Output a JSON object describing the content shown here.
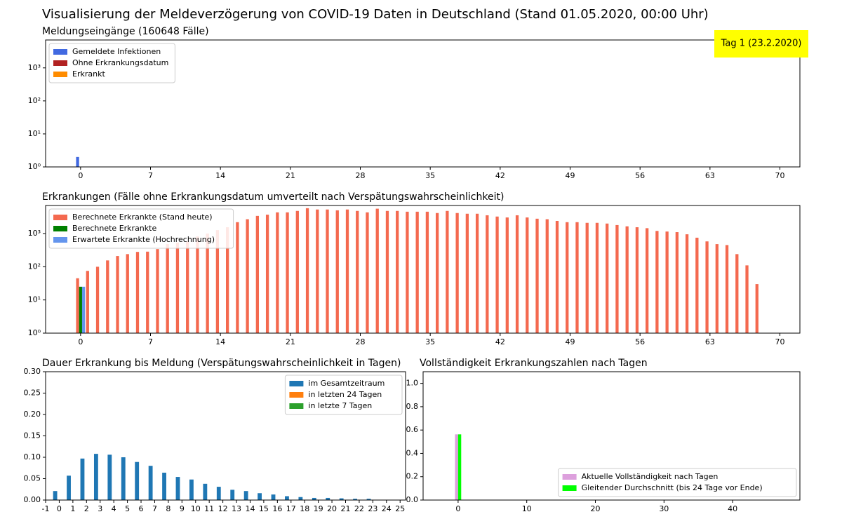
{
  "chart_data": [
    {
      "type": "bar",
      "suptitle": "Visualisierung der Meldeverzögerung von COVID-19 Daten in Deutschland (Stand 01.05.2020, 00:00 Uhr)",
      "title": "Meldungseingänge (160648 Fälle)",
      "log_y": true,
      "legend": "upper left",
      "xlim": [
        -3.5,
        72
      ],
      "xticks": [
        0,
        7,
        14,
        21,
        28,
        35,
        42,
        49,
        56,
        63,
        70
      ],
      "ylim": [
        1,
        7000
      ],
      "yticks": [
        {
          "value": 1,
          "label": "10⁰"
        },
        {
          "value": 10,
          "label": "10¹"
        },
        {
          "value": 100,
          "label": "10²"
        },
        {
          "value": 1000,
          "label": "10³"
        }
      ],
      "annotation": {
        "text": "Tag 1 (23.2.2020)",
        "color": "#ffff00"
      },
      "series": [
        {
          "name": "Gemeldete Infektionen",
          "color": "#4169e1",
          "x": [
            0
          ],
          "values": [
            2
          ]
        },
        {
          "name": "Ohne Erkrankungsdatum",
          "color": "#b22222",
          "x": [],
          "values": []
        },
        {
          "name": "Erkrankt",
          "color": "#ff8c00",
          "x": [],
          "values": []
        }
      ]
    },
    {
      "type": "bar",
      "title": "Erkrankungen (Fälle ohne Erkrankungsdatum umverteilt nach Verspätungswahrscheinlichkeit)",
      "log_y": true,
      "legend": "upper left",
      "xlim": [
        -3.5,
        72
      ],
      "xticks": [
        0,
        7,
        14,
        21,
        28,
        35,
        42,
        49,
        56,
        63,
        70
      ],
      "ylim": [
        1,
        7000
      ],
      "yticks": [
        {
          "value": 1,
          "label": "10⁰"
        },
        {
          "value": 10,
          "label": "10¹"
        },
        {
          "value": 100,
          "label": "10²"
        },
        {
          "value": 1000,
          "label": "10³"
        }
      ],
      "series": [
        {
          "name": "Berechnete Erkrankte (Stand heute)",
          "color": "#f4694f",
          "x": [
            0,
            1,
            2,
            3,
            4,
            5,
            6,
            7,
            8,
            9,
            10,
            11,
            12,
            13,
            14,
            15,
            16,
            17,
            18,
            19,
            20,
            21,
            22,
            23,
            24,
            25,
            26,
            27,
            28,
            29,
            30,
            31,
            32,
            33,
            34,
            35,
            36,
            37,
            38,
            39,
            40,
            41,
            42,
            43,
            44,
            45,
            46,
            47,
            48,
            49,
            50,
            51,
            52,
            53,
            54,
            55,
            56,
            57,
            58,
            59,
            60,
            61,
            62,
            63,
            64,
            65,
            66,
            67,
            68
          ],
          "values": [
            45,
            75,
            100,
            155,
            210,
            240,
            280,
            285,
            340,
            480,
            530,
            580,
            820,
            1000,
            1270,
            1550,
            2200,
            2700,
            3400,
            3700,
            4350,
            4350,
            4800,
            5800,
            5300,
            5300,
            5000,
            5300,
            4800,
            4350,
            5600,
            4800,
            4800,
            4550,
            4550,
            4550,
            4150,
            4800,
            4150,
            3950,
            3950,
            3550,
            3250,
            3050,
            3550,
            3050,
            2800,
            2700,
            2400,
            2200,
            2200,
            2100,
            2100,
            2000,
            1800,
            1650,
            1550,
            1450,
            1200,
            1150,
            1100,
            950,
            750,
            580,
            480,
            450,
            240,
            110,
            30
          ]
        },
        {
          "name": "Berechnete Erkrankte",
          "color": "#008000",
          "x": [
            0
          ],
          "values": [
            25
          ]
        },
        {
          "name": "Erwartete Erkrankte (Hochrechnung)",
          "color": "#6495ed",
          "x": [
            0
          ],
          "values": [
            25
          ]
        }
      ]
    },
    {
      "type": "bar",
      "title": "Dauer Erkrankung bis Meldung (Verspätungswahrscheinlichkeit in Tagen)",
      "log_y": false,
      "legend": "upper right",
      "xlim": [
        -1,
        25.4
      ],
      "xticks": [
        -1,
        0,
        1,
        2,
        3,
        4,
        5,
        6,
        7,
        8,
        9,
        10,
        11,
        12,
        13,
        14,
        15,
        16,
        17,
        18,
        19,
        20,
        21,
        22,
        23,
        24,
        25
      ],
      "ylim": [
        0,
        0.3
      ],
      "yticks": [
        {
          "value": 0,
          "label": "0.00"
        },
        {
          "value": 0.05,
          "label": "0.05"
        },
        {
          "value": 0.1,
          "label": "0.10"
        },
        {
          "value": 0.15,
          "label": "0.15"
        },
        {
          "value": 0.2,
          "label": "0.20"
        },
        {
          "value": 0.25,
          "label": "0.25"
        },
        {
          "value": 0.3,
          "label": "0.30"
        }
      ],
      "series": [
        {
          "name": "im Gesamtzeitraum",
          "color": "#1f77b4",
          "x": [
            0,
            1,
            2,
            3,
            4,
            5,
            6,
            7,
            8,
            9,
            10,
            11,
            12,
            13,
            14,
            15,
            16,
            17,
            18,
            19,
            20,
            21,
            22,
            23
          ],
          "values": [
            0.021,
            0.057,
            0.097,
            0.108,
            0.106,
            0.1,
            0.089,
            0.08,
            0.064,
            0.054,
            0.048,
            0.038,
            0.031,
            0.024,
            0.021,
            0.016,
            0.013,
            0.009,
            0.007,
            0.005,
            0.005,
            0.004,
            0.003,
            0.003
          ]
        },
        {
          "name": "in letzten 24 Tagen",
          "color": "#ff7f0e",
          "x": [],
          "values": []
        },
        {
          "name": "in letzte 7 Tagen",
          "color": "#2ca02c",
          "x": [],
          "values": []
        }
      ]
    },
    {
      "type": "bar",
      "title": "Vollständigkeit Erkrankungszahlen nach Tagen",
      "log_y": false,
      "legend": "lower right",
      "xlim": [
        -5.1,
        49.8
      ],
      "xticks": [
        0,
        10,
        20,
        30,
        40
      ],
      "ylim": [
        0,
        1.1
      ],
      "yticks": [
        {
          "value": 0,
          "label": "0.0"
        },
        {
          "value": 0.2,
          "label": "0.2"
        },
        {
          "value": 0.4,
          "label": "0.4"
        },
        {
          "value": 0.6,
          "label": "0.6"
        },
        {
          "value": 0.8,
          "label": "0.8"
        },
        {
          "value": 1,
          "label": "1.0"
        }
      ],
      "series": [
        {
          "name": "Aktuelle Vollständigkeit nach Tagen",
          "color": "#dda0dd",
          "x": [
            0
          ],
          "values": [
            0.563
          ]
        },
        {
          "name": "Gleitender Durchschnitt (bis 24 Tage vor Ende)",
          "color": "#00ff00",
          "x": [
            0
          ],
          "values": [
            0.563
          ]
        }
      ]
    }
  ]
}
